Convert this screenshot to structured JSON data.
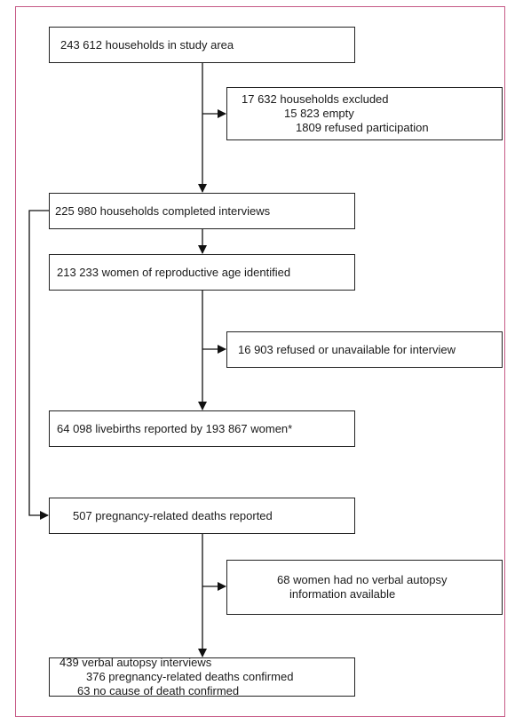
{
  "nodes": [
    {
      "lines": [
        "243 612 households in study area"
      ]
    },
    {
      "lines": [
        "17 632 households excluded",
        "15 823 empty",
        "1809 refused participation"
      ]
    },
    {
      "lines": [
        "225 980 households completed interviews"
      ]
    },
    {
      "lines": [
        "213 233 women of reproductive age identified"
      ]
    },
    {
      "lines": [
        "16 903 refused or unavailable for interview"
      ]
    },
    {
      "lines": [
        "64 098 livebirths reported by 193 867 women*"
      ]
    },
    {
      "lines": [
        "507 pregnancy-related deaths reported"
      ]
    },
    {
      "lines": [
        "68 women had no verbal autopsy",
        "information available"
      ]
    },
    {
      "lines": [
        "439 verbal autopsy interviews",
        "376 pregnancy-related deaths confirmed",
        "63 no cause of death confirmed"
      ]
    }
  ]
}
